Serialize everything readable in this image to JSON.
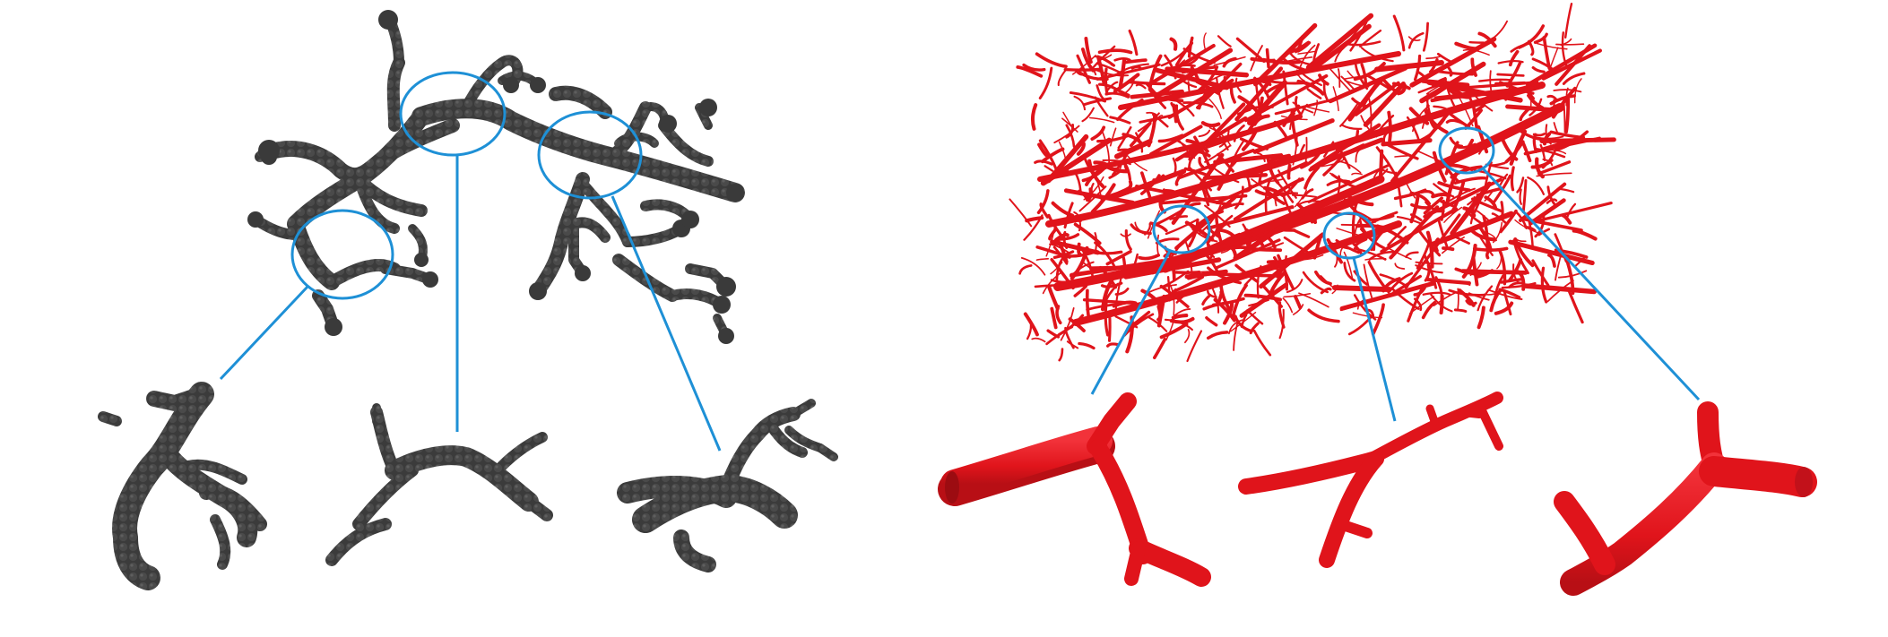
{
  "colors": {
    "background": "#ffffff",
    "point_cloud": "#3f3f3f",
    "point_cloud_dark": "#2a2a2a",
    "vessel": "#e0141b",
    "vessel_dark": "#b80f15",
    "callout": "#1e90d6"
  },
  "left_panel": {
    "items": [
      "cloud-crop-1",
      "cloud-crop-2",
      "cloud-crop-3"
    ]
  },
  "right_panel": {
    "items": [
      "vessel-crop-1",
      "vessel-crop-2",
      "vessel-crop-3"
    ]
  }
}
